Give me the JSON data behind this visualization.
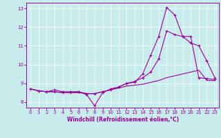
{
  "xlabel": "Windchill (Refroidissement éolien,°C)",
  "background_color": "#c8ecec",
  "line_color": "#990099",
  "xlim": [
    -0.5,
    23.5
  ],
  "ylim": [
    7.7,
    13.3
  ],
  "yticks": [
    8,
    9,
    10,
    11,
    12,
    13
  ],
  "xticks": [
    0,
    1,
    2,
    3,
    4,
    5,
    6,
    7,
    8,
    9,
    10,
    11,
    12,
    13,
    14,
    15,
    16,
    17,
    18,
    19,
    20,
    21,
    22,
    23
  ],
  "series1_x": [
    0,
    1,
    2,
    3,
    4,
    5,
    6,
    7,
    8,
    9,
    10,
    11,
    12,
    13,
    14,
    15,
    16,
    17,
    18,
    19,
    20,
    21,
    22,
    23
  ],
  "series1_y": [
    8.7,
    8.6,
    8.55,
    8.65,
    8.55,
    8.55,
    8.55,
    8.4,
    7.8,
    8.5,
    8.7,
    8.8,
    9.0,
    9.05,
    9.5,
    10.5,
    11.5,
    13.05,
    12.65,
    11.5,
    11.15,
    11.0,
    10.2,
    9.3
  ],
  "series2_x": [
    0,
    1,
    2,
    3,
    4,
    5,
    6,
    7,
    8,
    9,
    10,
    11,
    12,
    13,
    14,
    15,
    16,
    17,
    18,
    19,
    20,
    21,
    22,
    23
  ],
  "series2_y": [
    8.7,
    8.6,
    8.55,
    8.55,
    8.5,
    8.5,
    8.55,
    8.45,
    8.45,
    8.55,
    8.65,
    8.8,
    9.0,
    9.1,
    9.3,
    9.6,
    10.3,
    11.8,
    11.6,
    11.5,
    11.5,
    9.3,
    9.25,
    9.2
  ],
  "series3_x": [
    0,
    1,
    2,
    3,
    4,
    5,
    6,
    7,
    8,
    9,
    10,
    11,
    12,
    13,
    14,
    15,
    16,
    17,
    18,
    19,
    20,
    21,
    22,
    23
  ],
  "series3_y": [
    8.7,
    8.6,
    8.55,
    8.55,
    8.5,
    8.5,
    8.5,
    8.45,
    8.45,
    8.55,
    8.65,
    8.75,
    8.85,
    8.9,
    8.95,
    9.05,
    9.15,
    9.3,
    9.4,
    9.5,
    9.6,
    9.7,
    9.15,
    9.15
  ]
}
